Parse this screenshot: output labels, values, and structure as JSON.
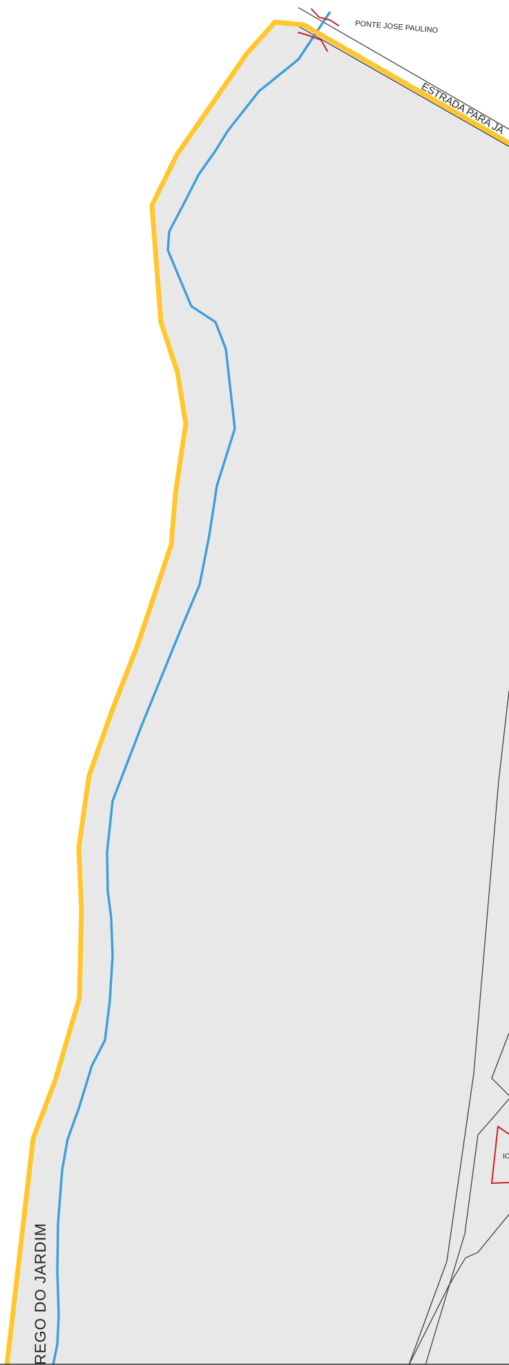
{
  "map": {
    "colors": {
      "land_fill": "#e8e8e8",
      "page_background": "#ffffff",
      "boundary": "#ffc72c",
      "river": "#3d9ddc",
      "thin_line": "#333333",
      "bridge_symbol": "#cc2222",
      "building_outline": "#cc2222"
    },
    "labels": {
      "bridge": "PONTE JOSE PAULINO",
      "road": "ESTRADA PARA JA",
      "stream": "REGO  DO  JARDIM",
      "building": "IC"
    },
    "features": [
      {
        "name": "municipal-boundary",
        "style": "thick-yellow-line"
      },
      {
        "name": "river",
        "style": "blue-line"
      },
      {
        "name": "road",
        "style": "thin-black-line"
      },
      {
        "name": "bridge",
        "style": "red-bracket-symbol"
      },
      {
        "name": "building",
        "style": "red-outline-polygon"
      }
    ]
  }
}
